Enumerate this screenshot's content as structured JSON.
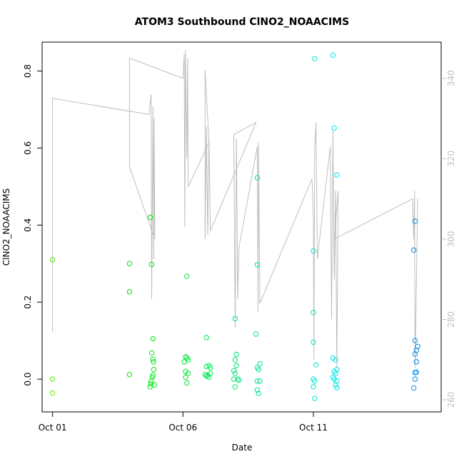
{
  "chart_data": {
    "type": "scatter",
    "title": "ATOM3 Southbound ClNO2_NOAACIMS",
    "xlabel": "Date",
    "ylabel": "ClNO2_NOAACIMS",
    "x_ticks": [
      "Oct 01",
      "Oct 06",
      "Oct 11"
    ],
    "x_tick_values": [
      1,
      6,
      11
    ],
    "xlim": [
      0.6,
      15.9
    ],
    "ylim": [
      -0.085,
      0.875
    ],
    "y_ticks": [
      0.0,
      0.2,
      0.4,
      0.6,
      0.8
    ],
    "y2lim": [
      257,
      349
    ],
    "y2_ticks": [
      260,
      280,
      300,
      320,
      340
    ],
    "y2_colors": "#bebebe",
    "grid": false,
    "series": [
      {
        "marker": "open-circle",
        "color_scale": "green-to-cyan-to-blue over time",
        "points": [
          {
            "x": 1.0,
            "y": 0.31
          },
          {
            "x": 1.0,
            "y": 0.0
          },
          {
            "x": 1.0,
            "y": -0.036
          },
          {
            "x": 3.95,
            "y": 0.3
          },
          {
            "x": 3.95,
            "y": 0.227
          },
          {
            "x": 3.95,
            "y": 0.012
          },
          {
            "x": 4.75,
            "y": 0.42
          },
          {
            "x": 4.8,
            "y": 0.298
          },
          {
            "x": 4.85,
            "y": 0.105
          },
          {
            "x": 4.8,
            "y": 0.068
          },
          {
            "x": 4.85,
            "y": 0.052
          },
          {
            "x": 4.87,
            "y": 0.045
          },
          {
            "x": 4.88,
            "y": 0.025
          },
          {
            "x": 4.85,
            "y": 0.01
          },
          {
            "x": 4.82,
            "y": 0.005
          },
          {
            "x": 4.78,
            "y": -0.005
          },
          {
            "x": 4.76,
            "y": -0.012
          },
          {
            "x": 4.74,
            "y": -0.02
          },
          {
            "x": 4.9,
            "y": -0.015
          },
          {
            "x": 6.15,
            "y": 0.267
          },
          {
            "x": 6.1,
            "y": 0.058
          },
          {
            "x": 6.15,
            "y": 0.055
          },
          {
            "x": 6.2,
            "y": 0.05
          },
          {
            "x": 6.05,
            "y": 0.045
          },
          {
            "x": 6.1,
            "y": 0.02
          },
          {
            "x": 6.2,
            "y": 0.015
          },
          {
            "x": 6.1,
            "y": 0.005
          },
          {
            "x": 6.15,
            "y": -0.01
          },
          {
            "x": 6.9,
            "y": 0.108
          },
          {
            "x": 6.9,
            "y": 0.033
          },
          {
            "x": 7.0,
            "y": 0.035
          },
          {
            "x": 7.05,
            "y": 0.03
          },
          {
            "x": 6.85,
            "y": 0.012
          },
          {
            "x": 6.95,
            "y": 0.01
          },
          {
            "x": 7.05,
            "y": 0.015
          },
          {
            "x": 7.0,
            "y": 0.005
          },
          {
            "x": 6.9,
            "y": 0.008
          },
          {
            "x": 8.0,
            "y": 0.157
          },
          {
            "x": 8.05,
            "y": 0.064
          },
          {
            "x": 8.0,
            "y": 0.05
          },
          {
            "x": 8.05,
            "y": 0.035
          },
          {
            "x": 7.95,
            "y": 0.022
          },
          {
            "x": 8.0,
            "y": 0.015
          },
          {
            "x": 8.1,
            "y": 0.0
          },
          {
            "x": 8.15,
            "y": -0.003
          },
          {
            "x": 7.95,
            "y": 0.0
          },
          {
            "x": 8.0,
            "y": -0.02
          },
          {
            "x": 8.85,
            "y": 0.523
          },
          {
            "x": 8.85,
            "y": 0.297
          },
          {
            "x": 8.8,
            "y": 0.117
          },
          {
            "x": 8.95,
            "y": 0.04
          },
          {
            "x": 8.85,
            "y": 0.03
          },
          {
            "x": 8.9,
            "y": 0.025
          },
          {
            "x": 8.85,
            "y": -0.005
          },
          {
            "x": 8.95,
            "y": -0.005
          },
          {
            "x": 8.85,
            "y": -0.028
          },
          {
            "x": 8.9,
            "y": -0.037
          },
          {
            "x": 11.05,
            "y": 0.832
          },
          {
            "x": 11.0,
            "y": 0.333
          },
          {
            "x": 11.0,
            "y": 0.173
          },
          {
            "x": 11.0,
            "y": 0.096
          },
          {
            "x": 11.1,
            "y": 0.037
          },
          {
            "x": 11.0,
            "y": 0.0
          },
          {
            "x": 11.05,
            "y": -0.005
          },
          {
            "x": 11.0,
            "y": -0.02
          },
          {
            "x": 11.05,
            "y": -0.05
          },
          {
            "x": 11.75,
            "y": 0.841
          },
          {
            "x": 11.8,
            "y": 0.652
          },
          {
            "x": 11.9,
            "y": 0.53
          },
          {
            "x": 11.75,
            "y": 0.055
          },
          {
            "x": 11.85,
            "y": 0.05
          },
          {
            "x": 11.8,
            "y": 0.02
          },
          {
            "x": 11.9,
            "y": 0.025
          },
          {
            "x": 11.85,
            "y": 0.015
          },
          {
            "x": 11.75,
            "y": 0.005
          },
          {
            "x": 11.8,
            "y": 0.0
          },
          {
            "x": 11.9,
            "y": -0.005
          },
          {
            "x": 11.85,
            "y": -0.015
          },
          {
            "x": 11.9,
            "y": -0.022
          },
          {
            "x": 14.9,
            "y": 0.41
          },
          {
            "x": 14.85,
            "y": 0.335
          },
          {
            "x": 14.9,
            "y": 0.1
          },
          {
            "x": 15.0,
            "y": 0.085
          },
          {
            "x": 14.95,
            "y": 0.075
          },
          {
            "x": 14.9,
            "y": 0.065
          },
          {
            "x": 14.95,
            "y": 0.045
          },
          {
            "x": 14.95,
            "y": 0.018
          },
          {
            "x": 14.9,
            "y": 0.017
          },
          {
            "x": 14.9,
            "y": 0.0
          },
          {
            "x": 14.85,
            "y": -0.023
          }
        ]
      },
      {
        "type": "line",
        "axis": "right",
        "color": "#bebebe",
        "points": [
          {
            "x": 1.0,
            "y": 277
          },
          {
            "x": 1.0,
            "y": 335
          },
          {
            "x": 4.7,
            "y": 331
          },
          {
            "x": 4.78,
            "y": 336
          },
          {
            "x": 4.8,
            "y": 285
          },
          {
            "x": 4.85,
            "y": 333
          },
          {
            "x": 4.88,
            "y": 295
          },
          {
            "x": 4.9,
            "y": 330
          },
          {
            "x": 4.92,
            "y": 300
          },
          {
            "x": 3.95,
            "y": 318
          },
          {
            "x": 3.95,
            "y": 345
          },
          {
            "x": 6.0,
            "y": 340
          },
          {
            "x": 6.05,
            "y": 346
          },
          {
            "x": 6.07,
            "y": 303
          },
          {
            "x": 6.1,
            "y": 347
          },
          {
            "x": 6.15,
            "y": 320
          },
          {
            "x": 6.18,
            "y": 345
          },
          {
            "x": 6.2,
            "y": 313
          },
          {
            "x": 7.0,
            "y": 324
          },
          {
            "x": 6.85,
            "y": 342
          },
          {
            "x": 6.85,
            "y": 300
          },
          {
            "x": 6.9,
            "y": 328
          },
          {
            "x": 6.95,
            "y": 301
          },
          {
            "x": 7.0,
            "y": 325
          },
          {
            "x": 7.05,
            "y": 302
          },
          {
            "x": 8.8,
            "y": 329
          },
          {
            "x": 7.95,
            "y": 326
          },
          {
            "x": 8.0,
            "y": 278
          },
          {
            "x": 8.05,
            "y": 325
          },
          {
            "x": 8.1,
            "y": 285
          },
          {
            "x": 8.15,
            "y": 298
          },
          {
            "x": 8.85,
            "y": 323
          },
          {
            "x": 8.88,
            "y": 282
          },
          {
            "x": 8.9,
            "y": 324
          },
          {
            "x": 8.95,
            "y": 284
          },
          {
            "x": 10.95,
            "y": 315
          },
          {
            "x": 11.0,
            "y": 305
          },
          {
            "x": 11.02,
            "y": 270
          },
          {
            "x": 11.05,
            "y": 322
          },
          {
            "x": 11.1,
            "y": 329
          },
          {
            "x": 11.15,
            "y": 295
          },
          {
            "x": 11.65,
            "y": 323
          },
          {
            "x": 11.7,
            "y": 280
          },
          {
            "x": 11.75,
            "y": 327
          },
          {
            "x": 11.8,
            "y": 290
          },
          {
            "x": 11.85,
            "y": 312
          },
          {
            "x": 11.9,
            "y": 268
          },
          {
            "x": 11.95,
            "y": 312
          },
          {
            "x": 11.8,
            "y": 300
          },
          {
            "x": 14.8,
            "y": 310
          },
          {
            "x": 14.85,
            "y": 300
          },
          {
            "x": 14.88,
            "y": 312
          },
          {
            "x": 14.9,
            "y": 268
          },
          {
            "x": 15.0,
            "y": 310
          }
        ]
      }
    ]
  }
}
